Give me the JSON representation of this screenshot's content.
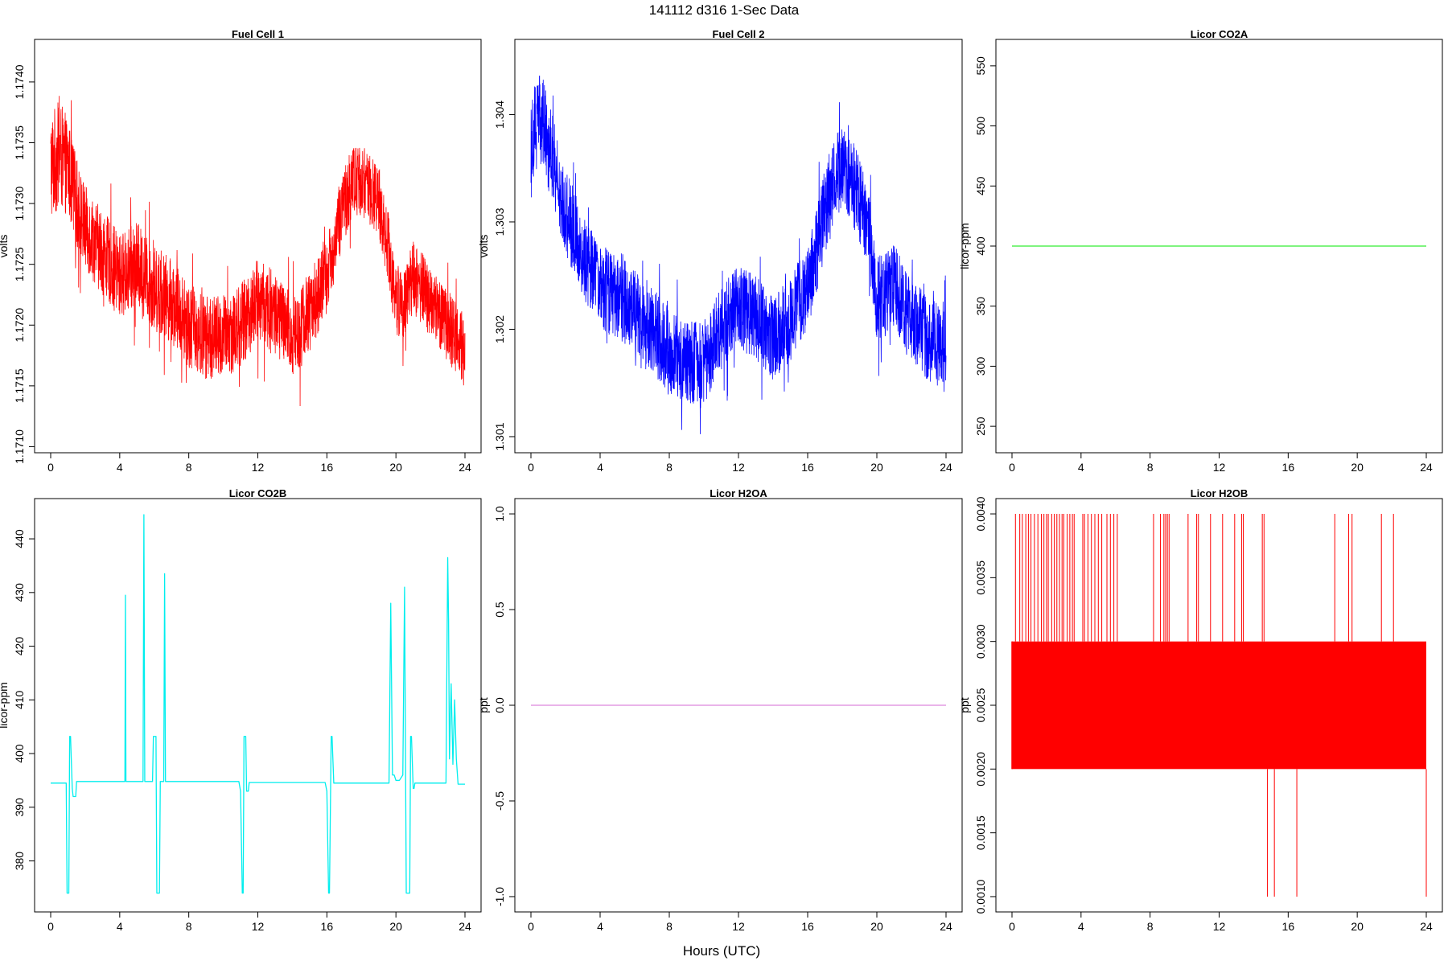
{
  "figure": {
    "title": "141112   d316   1-Sec Data",
    "xlabel": "Hours (UTC)"
  },
  "chart_data": [
    {
      "type": "line",
      "title": "Fuel Cell 1",
      "ylabel": "volts",
      "xlim": [
        0,
        24
      ],
      "ylim": [
        1.17095,
        1.17435
      ],
      "xticks": [
        0,
        4,
        8,
        12,
        16,
        20,
        24
      ],
      "xtick_labels": [
        "0",
        "4",
        "8",
        "12",
        "16",
        "20",
        "24"
      ],
      "yticks": [
        1.171,
        1.1715,
        1.172,
        1.1725,
        1.173,
        1.1735,
        1.174
      ],
      "ytick_labels": [
        "1.1710",
        "1.1715",
        "1.1720",
        "1.1725",
        "1.1730",
        "1.1735",
        "1.1740"
      ],
      "color": "#ff0000",
      "series": [
        {
          "style": "noisy-band",
          "x": [
            0,
            0.5,
            1,
            1.5,
            2,
            3,
            4,
            5,
            6,
            7,
            8,
            9,
            10,
            11,
            12,
            13,
            14,
            15,
            16,
            16.5,
            17,
            17.5,
            18,
            18.5,
            19,
            19.5,
            20,
            20.5,
            21,
            22,
            23,
            24
          ],
          "mean": [
            1.1733,
            1.1734,
            1.1733,
            1.173,
            1.1728,
            1.1726,
            1.1724,
            1.1725,
            1.1723,
            1.1722,
            1.172,
            1.1719,
            1.1719,
            1.172,
            1.1722,
            1.1721,
            1.1719,
            1.1721,
            1.1724,
            1.1727,
            1.173,
            1.1732,
            1.1732,
            1.1731,
            1.173,
            1.1727,
            1.1722,
            1.1722,
            1.1724,
            1.1722,
            1.172,
            1.1718
          ],
          "half": [
            0.00045,
            0.00045,
            0.0004,
            0.00038,
            0.00035,
            0.00035,
            0.00035,
            0.00035,
            0.00035,
            0.00035,
            0.00035,
            0.00035,
            0.00035,
            0.00035,
            0.00035,
            0.00035,
            0.00035,
            0.00035,
            0.0003,
            0.0003,
            0.0003,
            0.0003,
            0.0003,
            0.0003,
            0.0003,
            0.0003,
            0.0003,
            0.0003,
            0.0003,
            0.0003,
            0.0003,
            0.0003
          ]
        }
      ]
    },
    {
      "type": "line",
      "title": "Fuel Cell 2",
      "ylabel": "volts",
      "xlim": [
        0,
        24
      ],
      "ylim": [
        1.30085,
        1.3047
      ],
      "xticks": [
        0,
        4,
        8,
        12,
        16,
        20,
        24
      ],
      "xtick_labels": [
        "0",
        "4",
        "8",
        "12",
        "16",
        "20",
        "24"
      ],
      "yticks": [
        1.301,
        1.302,
        1.303,
        1.304
      ],
      "ytick_labels": [
        "1.301",
        "1.302",
        "1.303",
        "1.304"
      ],
      "color": "#0000ff",
      "series": [
        {
          "style": "noisy-band",
          "x": [
            0,
            0.5,
            1,
            1.5,
            2,
            3,
            4,
            5,
            6,
            7,
            8,
            9,
            10,
            11,
            12,
            13,
            14,
            15,
            16,
            16.5,
            17,
            17.5,
            18,
            18.5,
            19,
            19.5,
            20,
            20.5,
            21,
            22,
            23,
            24
          ],
          "mean": [
            1.3038,
            1.304,
            1.3038,
            1.3034,
            1.3031,
            1.3027,
            1.3024,
            1.3023,
            1.3022,
            1.302,
            1.3018,
            1.3017,
            1.3017,
            1.302,
            1.3022,
            1.3021,
            1.3019,
            1.3021,
            1.3024,
            1.3027,
            1.3031,
            1.3034,
            1.3035,
            1.3034,
            1.3032,
            1.3029,
            1.3023,
            1.3023,
            1.3024,
            1.3021,
            1.3019,
            1.3018
          ],
          "half": [
            0.00045,
            0.00045,
            0.0004,
            0.0004,
            0.0004,
            0.0004,
            0.0004,
            0.0004,
            0.0004,
            0.0004,
            0.0004,
            0.0004,
            0.0004,
            0.0004,
            0.0004,
            0.0004,
            0.0004,
            0.0004,
            0.0004,
            0.0004,
            0.0004,
            0.0004,
            0.0004,
            0.0004,
            0.0004,
            0.0004,
            0.0004,
            0.0004,
            0.0004,
            0.0004,
            0.0004,
            0.0004
          ]
        }
      ]
    },
    {
      "type": "line",
      "title": "Licor CO2A",
      "ylabel": "licor-ppm",
      "xlim": [
        0,
        24
      ],
      "ylim": [
        228,
        572
      ],
      "xticks": [
        0,
        4,
        8,
        12,
        16,
        20,
        24
      ],
      "xtick_labels": [
        "0",
        "4",
        "8",
        "12",
        "16",
        "20",
        "24"
      ],
      "yticks": [
        250,
        300,
        350,
        400,
        450,
        500,
        550
      ],
      "ytick_labels": [
        "250",
        "300",
        "350",
        "400",
        "450",
        "500",
        "550"
      ],
      "color": "#33ee33",
      "series": [
        {
          "style": "line",
          "x": [
            0,
            24
          ],
          "y": [
            400,
            400
          ]
        }
      ]
    },
    {
      "type": "line",
      "title": "Licor CO2B",
      "ylabel": "licor-ppm",
      "xlim": [
        0,
        24
      ],
      "ylim": [
        370.5,
        447.5
      ],
      "xticks": [
        0,
        4,
        8,
        12,
        16,
        20,
        24
      ],
      "xtick_labels": [
        "0",
        "4",
        "8",
        "12",
        "16",
        "20",
        "24"
      ],
      "yticks": [
        380,
        390,
        400,
        410,
        420,
        430,
        440
      ],
      "ytick_labels": [
        "380",
        "390",
        "400",
        "410",
        "420",
        "430",
        "440"
      ],
      "color": "#00eeee",
      "series": [
        {
          "style": "line",
          "x": [
            0,
            0.9,
            0.95,
            1.05,
            1.1,
            1.15,
            1.25,
            1.3,
            1.45,
            1.5,
            4.3,
            4.33,
            4.36,
            4.4,
            5.35,
            5.4,
            5.45,
            5.5,
            5.9,
            5.95,
            6.1,
            6.15,
            6.3,
            6.35,
            6.55,
            6.6,
            6.65,
            6.7,
            10.9,
            11.0,
            11.1,
            11.15,
            11.2,
            11.3,
            11.35,
            11.45,
            11.5,
            15.9,
            16.0,
            16.1,
            16.15,
            16.25,
            16.3,
            16.4,
            16.45,
            19.6,
            19.7,
            19.8,
            19.9,
            20.0,
            20.2,
            20.4,
            20.5,
            20.6,
            20.8,
            20.85,
            20.9,
            21.0,
            21.05,
            21.1,
            21.35,
            21.4,
            21.5,
            21.55,
            22.5,
            22.8,
            22.85,
            22.9,
            23.0,
            23.05,
            23.1,
            23.2,
            23.3,
            23.4,
            23.5,
            23.6,
            24
          ],
          "y": [
            394.5,
            394.5,
            374,
            374,
            403.2,
            403.2,
            393.5,
            392,
            392,
            394.8,
            394.8,
            429.5,
            394.8,
            394.8,
            394.8,
            444.5,
            394.8,
            394.8,
            394.8,
            403.2,
            403.2,
            374,
            374,
            394.8,
            394.8,
            433.5,
            394.8,
            394.8,
            394.8,
            393,
            374,
            374,
            403.2,
            403.2,
            393,
            393,
            394.6,
            394.6,
            393,
            374,
            374,
            403.2,
            403.2,
            394.5,
            394.5,
            394.5,
            428,
            396,
            396,
            395,
            395,
            396,
            431,
            374,
            374,
            403.2,
            403.2,
            393.5,
            393.5,
            394.5,
            394.5,
            394.5,
            394.5,
            394.5,
            394.5,
            394.5,
            394.5,
            394.5,
            436.5,
            425,
            399,
            413,
            398,
            410,
            399,
            394.3,
            394.3
          ]
        }
      ]
    },
    {
      "type": "line",
      "title": "Licor H2OA",
      "ylabel": "ppt",
      "xlim": [
        0,
        24
      ],
      "ylim": [
        -1.08,
        1.08
      ],
      "xticks": [
        0,
        4,
        8,
        12,
        16,
        20,
        24
      ],
      "xtick_labels": [
        "0",
        "4",
        "8",
        "12",
        "16",
        "20",
        "24"
      ],
      "yticks": [
        -1.0,
        -0.5,
        0.0,
        0.5,
        1.0
      ],
      "ytick_labels": [
        "-1.0",
        "-0.5",
        "0.0",
        "0.5",
        "1.0"
      ],
      "color": "#dd88dd",
      "series": [
        {
          "style": "line",
          "x": [
            0,
            24
          ],
          "y": [
            0,
            0
          ]
        }
      ]
    },
    {
      "type": "line",
      "title": "Licor H2OB",
      "ylabel": "ppt",
      "xlim": [
        0,
        24
      ],
      "ylim": [
        0.00088,
        0.00412
      ],
      "xticks": [
        0,
        4,
        8,
        12,
        16,
        20,
        24
      ],
      "xtick_labels": [
        "0",
        "4",
        "8",
        "12",
        "16",
        "20",
        "24"
      ],
      "yticks": [
        0.001,
        0.0015,
        0.002,
        0.0025,
        0.003,
        0.0035,
        0.004
      ],
      "ytick_labels": [
        "0.0010",
        "0.0015",
        "0.0020",
        "0.0025",
        "0.0030",
        "0.0035",
        "0.0040"
      ],
      "color": "#ff0000",
      "series": [
        {
          "style": "filled-band",
          "x": [
            0,
            24
          ],
          "low": 0.002,
          "high": 0.003,
          "spikes_up_to": 0.004,
          "spikes_up_x": [
            0.2,
            0.45,
            0.6,
            0.8,
            0.95,
            1.1,
            1.3,
            1.5,
            1.7,
            1.85,
            2.0,
            2.1,
            2.3,
            2.45,
            2.6,
            2.75,
            2.9,
            3.0,
            3.2,
            3.35,
            3.5,
            3.6,
            4.1,
            4.2,
            4.4,
            4.6,
            4.8,
            5.0,
            5.2,
            5.5,
            5.7,
            5.9,
            6.1,
            8.2,
            8.6,
            8.8,
            8.9,
            9.0,
            9.1,
            10.2,
            10.7,
            10.8,
            11.5,
            12.2,
            12.9,
            13.3,
            13.4,
            14.5,
            14.6,
            18.7,
            19.5,
            19.7,
            21.4,
            22.1
          ],
          "spikes_down_to": 0.001,
          "spikes_down_x": [
            14.8,
            15.2,
            16.5,
            24.0
          ]
        }
      ]
    }
  ]
}
